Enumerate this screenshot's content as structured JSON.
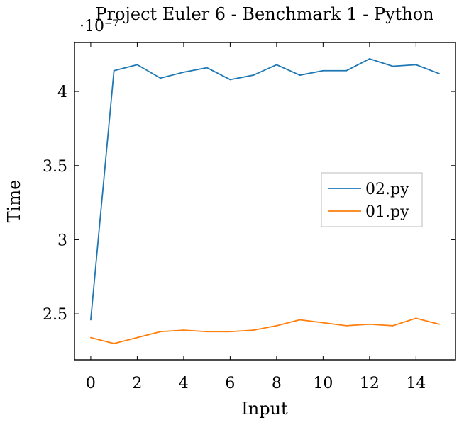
{
  "chart_data": {
    "type": "line",
    "title": "Project Euler 6 - Benchmark 1 - Python",
    "xlabel": "Input",
    "ylabel": "Time",
    "y_multiplier_label": "·10⁻⁷",
    "xlim": [
      -0.7,
      15.7
    ],
    "ylim": [
      2.19,
      4.33
    ],
    "xticks": [
      0,
      2,
      4,
      6,
      8,
      10,
      12,
      14
    ],
    "yticks": [
      2.5,
      3,
      3.5,
      4
    ],
    "ytick_labels": [
      "2.5",
      "3",
      "3.5",
      "4"
    ],
    "grid": false,
    "legend_position": "right",
    "x": [
      0,
      1,
      2,
      3,
      4,
      5,
      6,
      7,
      8,
      9,
      10,
      11,
      12,
      13,
      14,
      15
    ],
    "series": [
      {
        "name": "02.py",
        "color": "#1f77b4",
        "values": [
          2.46,
          4.14,
          4.18,
          4.09,
          4.13,
          4.16,
          4.08,
          4.11,
          4.18,
          4.11,
          4.14,
          4.14,
          4.22,
          4.17,
          4.18,
          4.12
        ]
      },
      {
        "name": "01.py",
        "color": "#ff7f0e",
        "values": [
          2.34,
          2.3,
          2.34,
          2.38,
          2.39,
          2.38,
          2.38,
          2.39,
          2.42,
          2.46,
          2.44,
          2.42,
          2.43,
          2.42,
          2.47,
          2.43
        ]
      }
    ]
  }
}
